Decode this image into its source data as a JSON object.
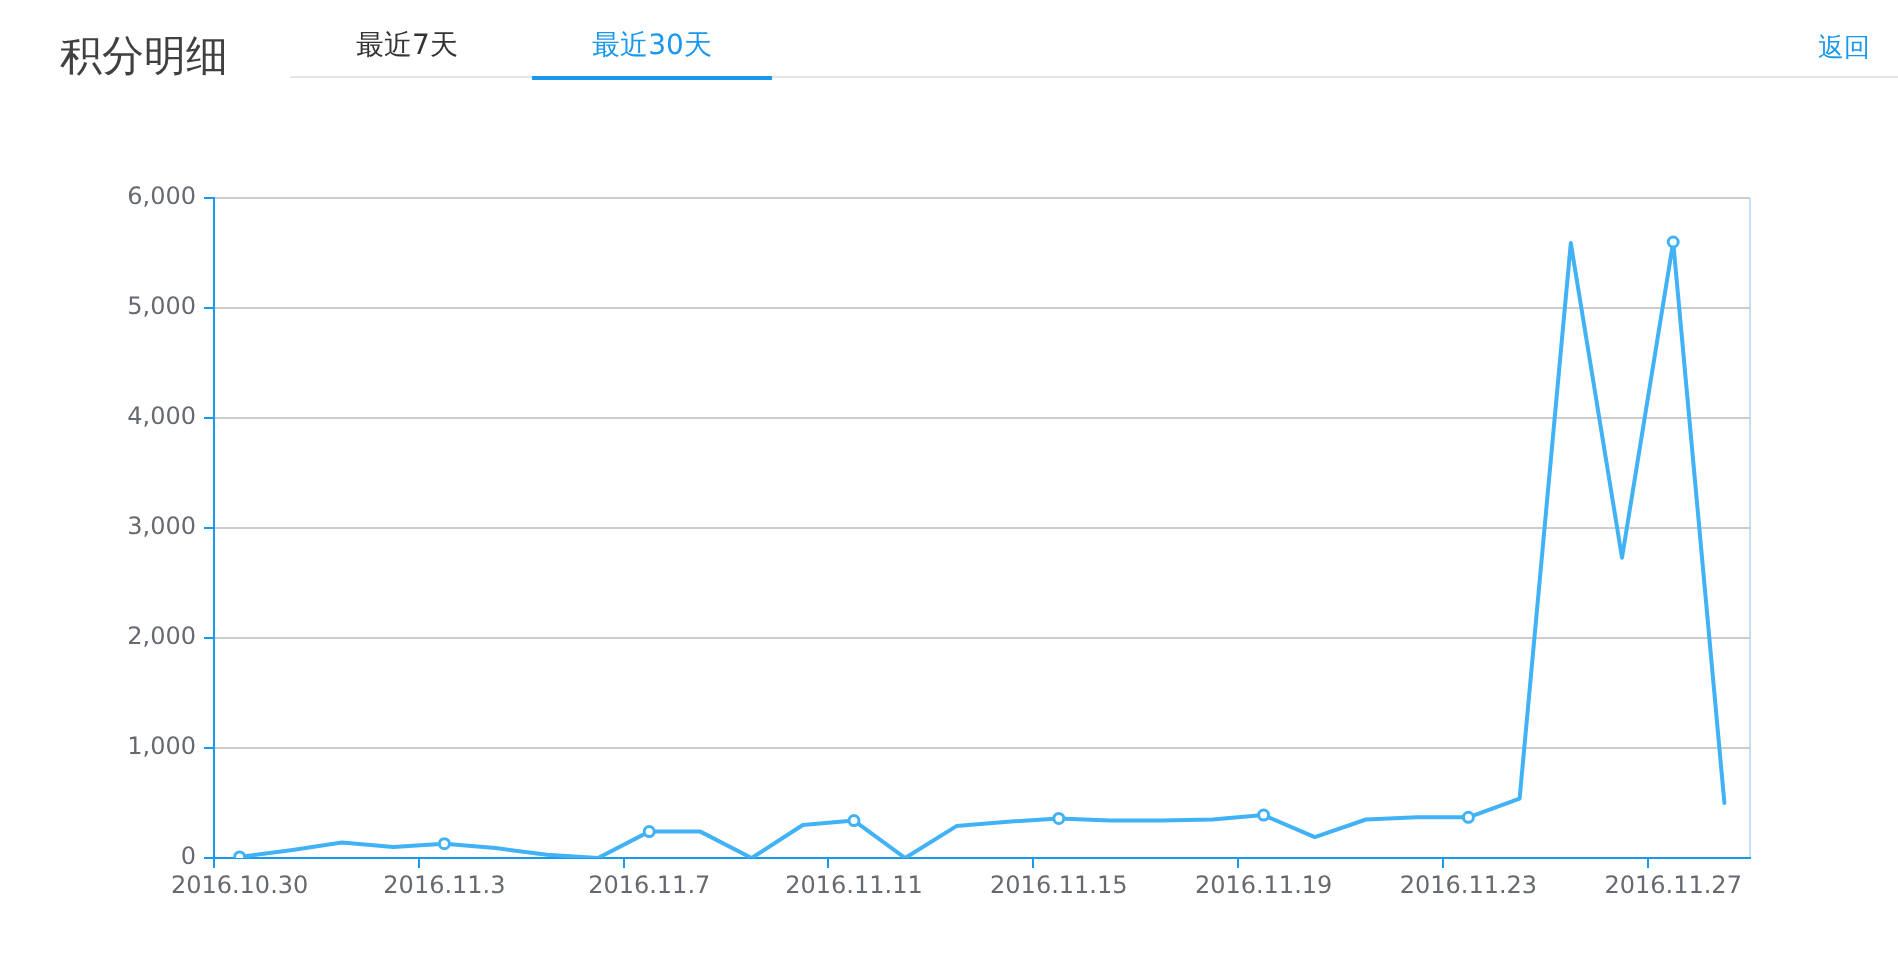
{
  "chart_data": {
    "type": "line",
    "title": "积分明细",
    "annotations": [
      "最近7天",
      "最近30天",
      "返回"
    ],
    "categories": [
      "2016.10.30",
      null,
      null,
      null,
      "2016.11.3",
      null,
      null,
      null,
      "2016.11.7",
      null,
      null,
      null,
      "2016.11.11",
      null,
      null,
      null,
      "2016.11.15",
      null,
      null,
      null,
      "2016.11.19",
      null,
      null,
      null,
      "2016.11.23",
      null,
      null,
      null,
      "2016.11.27",
      null
    ],
    "series": [
      {
        "color": "#40b2f5",
        "values": [
          10,
          70,
          140,
          100,
          130,
          90,
          30,
          0,
          240,
          240,
          0,
          300,
          340,
          0,
          290,
          330,
          360,
          340,
          340,
          350,
          390,
          190,
          350,
          370,
          370,
          540,
          5590,
          2730,
          5600,
          500
        ]
      }
    ],
    "ylim": [
      0,
      6000
    ],
    "yticks": [
      0,
      {
        "value": 1000,
        "label": "1,000"
      },
      {
        "value": 2000,
        "label": "2,000"
      },
      {
        "value": 3000,
        "label": "3,000"
      },
      {
        "value": 4000,
        "label": "4,000"
      },
      {
        "value": 5000,
        "label": "5,000"
      },
      {
        "value": 6000,
        "label": "6,000"
      }
    ],
    "grid": "y",
    "line_style": "solid"
  }
}
